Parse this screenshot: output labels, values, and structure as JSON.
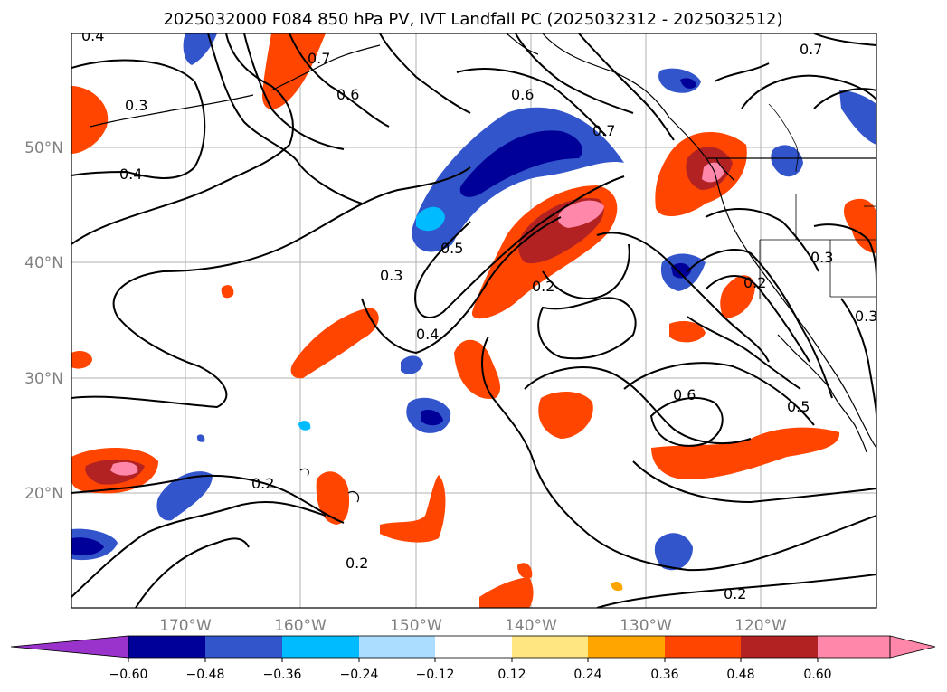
{
  "title": "2025032000 F084 850 hPa PV, IVT Landfall PC (2025032312 - 2025032512)",
  "lat_labels": [
    "50°N",
    "40°N",
    "30°N",
    "20°N"
  ],
  "lon_labels": [
    "170°W",
    "160°W",
    "150°W",
    "140°W",
    "130°W",
    "120°W"
  ],
  "colorbar": {
    "ticks": [
      "−0.60",
      "−0.48",
      "−0.36",
      "−0.24",
      "−0.12",
      "0.12",
      "0.24",
      "0.36",
      "0.48",
      "0.60"
    ],
    "colors": [
      "#9933cc",
      "#000099",
      "#3355cc",
      "#00bbff",
      "#aaddff",
      "#ffffff",
      "#ffe680",
      "#ffa500",
      "#ff4500",
      "#b22222",
      "#ff88aa",
      "#ff88aa"
    ]
  },
  "contour_labels": [
    "0.4",
    "0.3",
    "0.4",
    "0.6",
    "0.7",
    "0.6",
    "0.7",
    "0.5",
    "0.3",
    "0.4",
    "0.2",
    "0.2",
    "0.2",
    "0.6",
    "0.5",
    "0.3",
    "0.3",
    "0.7",
    "0.2",
    "0.2"
  ]
}
